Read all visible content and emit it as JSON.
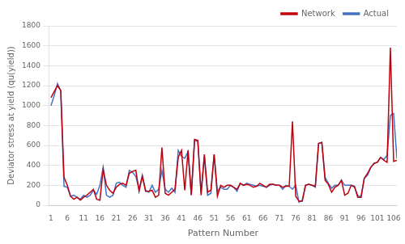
{
  "chart_data": {
    "type": "line",
    "x": [
      1,
      2,
      3,
      4,
      5,
      6,
      7,
      8,
      9,
      10,
      11,
      12,
      13,
      14,
      15,
      16,
      17,
      18,
      19,
      20,
      21,
      22,
      23,
      24,
      25,
      26,
      27,
      28,
      29,
      30,
      31,
      32,
      33,
      34,
      35,
      36,
      37,
      38,
      39,
      40,
      41,
      42,
      43,
      44,
      45,
      46,
      47,
      48,
      49,
      50,
      51,
      52,
      53,
      54,
      55,
      56,
      57,
      58,
      59,
      60,
      61,
      62,
      63,
      64,
      65,
      66,
      67,
      68,
      69,
      70,
      71,
      72,
      73,
      74,
      75,
      76,
      77,
      78,
      79,
      80,
      81,
      82,
      83,
      84,
      85,
      86,
      87,
      88,
      89,
      90,
      91,
      92,
      93,
      94,
      95,
      96,
      97,
      98,
      99,
      100,
      101,
      102,
      103,
      104,
      105,
      106,
      107
    ],
    "series": [
      {
        "name": "Network",
        "color": "#C0000C",
        "values": [
          1080,
          1140,
          1200,
          1150,
          280,
          200,
          90,
          60,
          80,
          50,
          80,
          100,
          130,
          160,
          60,
          50,
          360,
          200,
          150,
          120,
          180,
          210,
          220,
          200,
          320,
          340,
          350,
          140,
          290,
          140,
          140,
          150,
          80,
          100,
          580,
          120,
          100,
          130,
          160,
          480,
          550,
          150,
          550,
          100,
          660,
          650,
          100,
          510,
          130,
          150,
          510,
          90,
          200,
          180,
          200,
          200,
          180,
          160,
          220,
          200,
          210,
          200,
          180,
          190,
          220,
          200,
          180,
          210,
          210,
          200,
          200,
          180,
          190,
          190,
          840,
          90,
          40,
          40,
          200,
          210,
          200,
          190,
          620,
          630,
          250,
          210,
          130,
          180,
          200,
          250,
          100,
          120,
          200,
          190,
          80,
          80,
          270,
          320,
          380,
          420,
          430,
          480,
          450,
          430,
          1580,
          440,
          450
        ]
      },
      {
        "name": "Actual",
        "color": "#4472C4",
        "values": [
          1000,
          1100,
          1220,
          1150,
          190,
          180,
          90,
          100,
          80,
          60,
          100,
          80,
          100,
          150,
          110,
          200,
          380,
          100,
          80,
          100,
          220,
          230,
          200,
          180,
          350,
          330,
          290,
          160,
          300,
          150,
          130,
          200,
          130,
          160,
          350,
          160,
          130,
          170,
          130,
          550,
          490,
          470,
          540,
          110,
          650,
          640,
          130,
          490,
          100,
          120,
          510,
          140,
          180,
          160,
          160,
          200,
          180,
          140,
          220,
          200,
          220,
          210,
          200,
          190,
          200,
          190,
          180,
          200,
          210,
          200,
          200,
          160,
          200,
          190,
          160,
          200,
          30,
          50,
          200,
          210,
          200,
          180,
          620,
          630,
          280,
          220,
          170,
          200,
          200,
          250,
          200,
          200,
          200,
          180,
          100,
          80,
          270,
          300,
          380,
          420,
          430,
          480,
          460,
          500,
          900,
          920,
          470
        ]
      }
    ],
    "xlabel": "Pattern Number",
    "ylabel": "Deviator stress at yield (qu(yield))",
    "xlim": [
      0.5,
      107
    ],
    "xticks": [
      1,
      6,
      11,
      16,
      21,
      26,
      31,
      36,
      41,
      46,
      51,
      56,
      61,
      66,
      71,
      76,
      81,
      86,
      91,
      96,
      101,
      106
    ],
    "ylim": [
      0,
      1800
    ],
    "yticks": [
      0,
      200,
      400,
      600,
      800,
      1000,
      1200,
      1400,
      1600,
      1800
    ],
    "grid": "y",
    "legend": "upper right"
  }
}
